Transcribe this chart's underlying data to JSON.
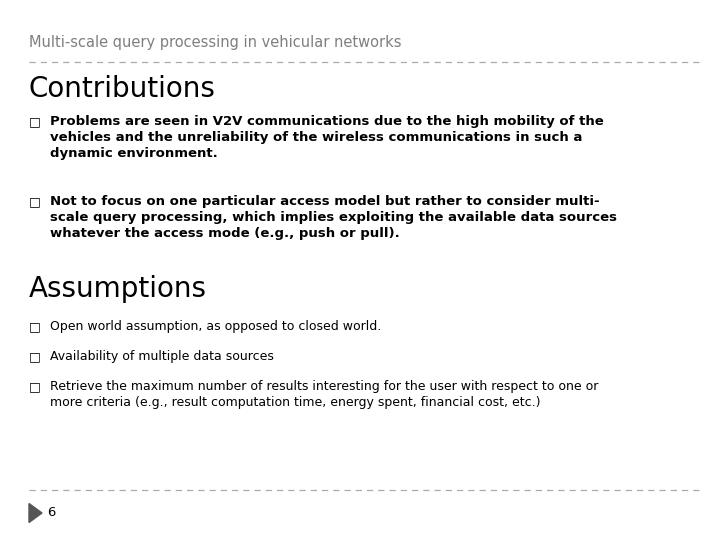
{
  "title": "Multi-scale query processing in vehicular networks",
  "section1": "Contributions",
  "section2": "Assumptions",
  "bullet_char": "□",
  "contributions": [
    "Problems are seen in V2V communications due to the high mobility of the\nvehicles and the unreliability of the wireless communications in such a\ndynamic environment.",
    "Not to focus on one particular access model but rather to consider multi-\nscale query processing, which implies exploiting the available data sources\nwhatever the access mode (e.g., push or pull)."
  ],
  "assumptions": [
    "Open world assumption, as opposed to closed world.",
    "Availability of multiple data sources",
    "Retrieve the maximum number of results interesting for the user with respect to one or\nmore criteria (e.g., result computation time, energy spent, financial cost, etc.)"
  ],
  "page_number": "6",
  "bg_color": "#ffffff",
  "title_color": "#7f7f7f",
  "section_color": "#000000",
  "bullet_color": "#000000",
  "contrib_text_color": "#000000",
  "assump_text_color": "#000000",
  "line_color": "#aaaaaa",
  "arrow_color": "#555555",
  "title_fontsize": 10.5,
  "section_fontsize": 20,
  "contrib_fontsize": 9.5,
  "assump_fontsize": 9.0,
  "bullet_fontsize": 9.0,
  "page_fontsize": 9.5
}
